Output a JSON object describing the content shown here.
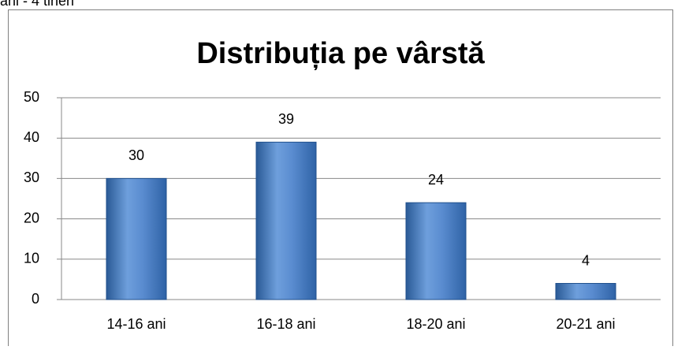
{
  "text_above": "ani - 4 tineri",
  "chart_data": {
    "type": "bar",
    "title": "Distribuția pe vârstă",
    "categories": [
      "14-16 ani",
      "16-18 ani",
      "18-20 ani",
      "20-21 ani"
    ],
    "values": [
      30,
      39,
      24,
      4
    ],
    "color": "#4f81bd",
    "ylim": [
      0,
      50
    ],
    "yticks": [
      0,
      10,
      20,
      30,
      40,
      50
    ],
    "grid": true
  }
}
